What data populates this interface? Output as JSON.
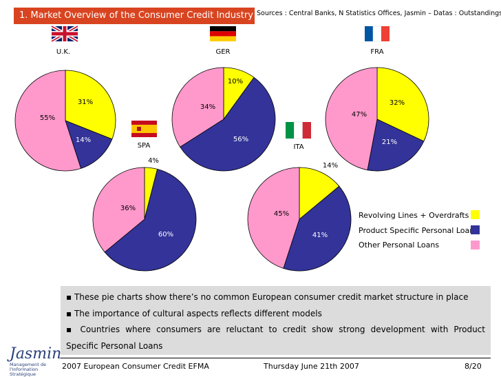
{
  "header": {
    "title": "1. Market Overview of the Consumer Credit Industry",
    "sources": "Sources : Central Banks, N Statistics Offices, Jasmin – Datas : Outstandings"
  },
  "colors": {
    "revolving": "#ffff00",
    "product_specific": "#333399",
    "other": "#ff99cc",
    "title_bg": "#d94420"
  },
  "chart_data": {
    "type": "pie",
    "series_names": [
      "Revolving Lines + Overdrafts",
      "Product Specific Personal Loans",
      "Other Personal Loans"
    ],
    "charts": [
      {
        "country": "U.K.",
        "flag": "uk",
        "values": [
          31,
          14,
          55
        ],
        "labels": [
          "31%",
          "14%",
          "55%"
        ]
      },
      {
        "country": "GER",
        "flag": "ger",
        "values": [
          10,
          56,
          34
        ],
        "labels": [
          "10%",
          "56%",
          "34%"
        ]
      },
      {
        "country": "FRA",
        "flag": "fra",
        "values": [
          32,
          21,
          47
        ],
        "labels": [
          "32%",
          "21%",
          "47%"
        ]
      },
      {
        "country": "SPA",
        "flag": "spa",
        "values": [
          4,
          60,
          36
        ],
        "labels": [
          "4%",
          "60%",
          "36%"
        ]
      },
      {
        "country": "ITA",
        "flag": "ita",
        "values": [
          14,
          41,
          45
        ],
        "labels": [
          "14%",
          "41%",
          "45%"
        ]
      }
    ],
    "legend_position": "right"
  },
  "legend": [
    {
      "label": "Revolving Lines + Overdrafts"
    },
    {
      "label": "Product Specific Personal Loans"
    },
    {
      "label": "Other Personal Loans"
    }
  ],
  "bullets": {
    "b1": "▪ These pie charts show there’s no common European consumer credit market structure in place",
    "b2": "▪ The importance of cultural aspects reflects different models",
    "b3_line1": "▪ Countries where consumers are reluctant to credit show strong development with Product",
    "b3_line2": "Specific Personal Loans"
  },
  "footer": {
    "left": "2007 European Consumer Credit EFMA",
    "center": "Thursday June 21th 2007",
    "page": "8/20"
  },
  "logo": {
    "name": "Jasmin",
    "tagline_1": "Management de",
    "tagline_2": "l'Information Stratégique"
  }
}
